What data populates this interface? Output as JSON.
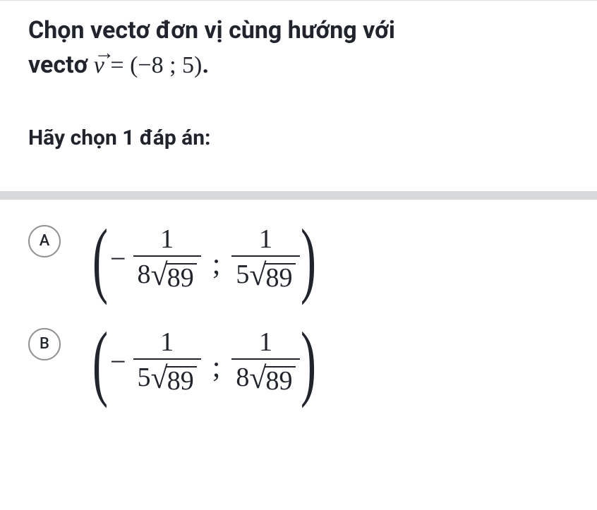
{
  "question": {
    "line1": "Chọn vectơ đơn vị cùng hướng với",
    "line2_prefix": "vectơ ",
    "vector_var": "v",
    "equals": " = ",
    "vector_value": "(−8 ; 5)",
    "period": "."
  },
  "instruction": "Hãy chọn 1 đáp án:",
  "options": [
    {
      "letter": "A",
      "term1": {
        "num": "1",
        "den_coef": "8",
        "den_radicand": "89"
      },
      "term2": {
        "num": "1",
        "den_coef": "5",
        "den_radicand": "89"
      }
    },
    {
      "letter": "B",
      "term1": {
        "num": "1",
        "den_coef": "5",
        "den_radicand": "89"
      },
      "term2": {
        "num": "1",
        "den_coef": "8",
        "den_radicand": "89"
      }
    }
  ],
  "colors": {
    "text": "#21242c",
    "separator_thin": "#e0e0e0",
    "separator_thick": "#d6d8da",
    "circle_border": "#909296",
    "background": "#ffffff"
  }
}
